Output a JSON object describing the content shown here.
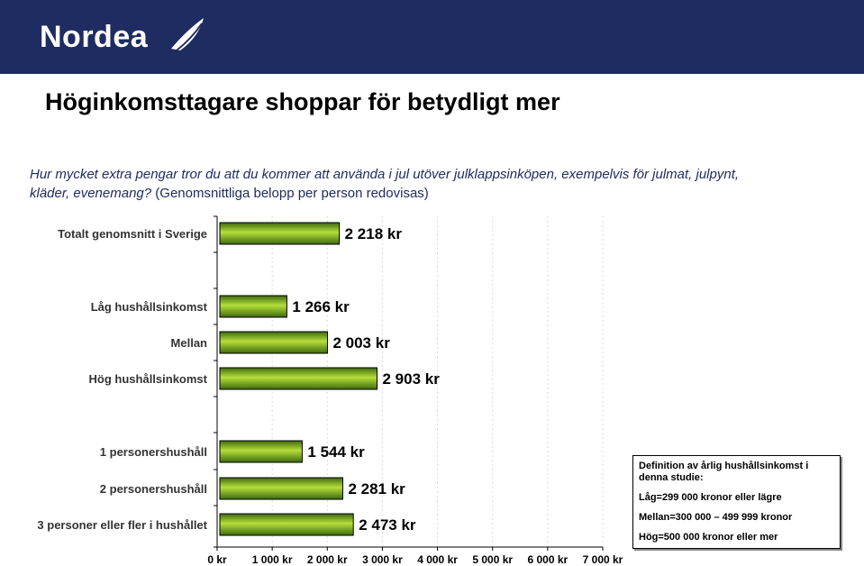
{
  "header": {
    "logo_text": "Nordea",
    "background": "#1f2c62"
  },
  "page": {
    "title": "Höginkomsttagare shoppar för betydligt mer",
    "question": "Hur mycket extra pengar tror du att du kommer att använda i jul utöver julklappsinköpen, exempelvis för julmat, julpynt, kläder, evenemang?",
    "question_note": "(Genomsnittliga belopp per person redovisas)"
  },
  "chart_data": {
    "type": "bar",
    "orientation": "horizontal",
    "categories": [
      "Totalt genomsnitt i Sverige",
      "Låg hushållsinkomst",
      "Mellan",
      "Hög hushållsinkomst",
      "1 personershushåll",
      "2 personershushåll",
      "3 personer eller fler i hushållet"
    ],
    "groups": [
      [
        0
      ],
      [
        1,
        2,
        3
      ],
      [
        4,
        5,
        6
      ]
    ],
    "values": [
      2218,
      1266,
      2003,
      2903,
      1544,
      2281,
      2473
    ],
    "value_labels": [
      "2 218 kr",
      "1 266 kr",
      "2 003 kr",
      "2 903 kr",
      "1 544 kr",
      "2 281 kr",
      "2 473 kr"
    ],
    "xlim": [
      0,
      7000
    ],
    "xticks": [
      0,
      1000,
      2000,
      3000,
      4000,
      5000,
      6000,
      7000
    ],
    "xtick_labels": [
      "0 kr",
      "1 000 kr",
      "2 000 kr",
      "3 000 kr",
      "4 000 kr",
      "5 000 kr",
      "6 000 kr",
      "7 000 kr"
    ],
    "grid": "vertical",
    "bar_color_dark": "#3d6a0f",
    "bar_color_light": "#b6de3a",
    "xlabel": "",
    "ylabel": ""
  },
  "definition_box": {
    "title": "Definition av årlig hushållsinkomst i denna studie:",
    "lines": [
      "Låg=299 000 kronor eller lägre",
      "Mellan=300 000 – 499 999 kronor",
      "Hög=500 000 kronor eller mer"
    ]
  }
}
